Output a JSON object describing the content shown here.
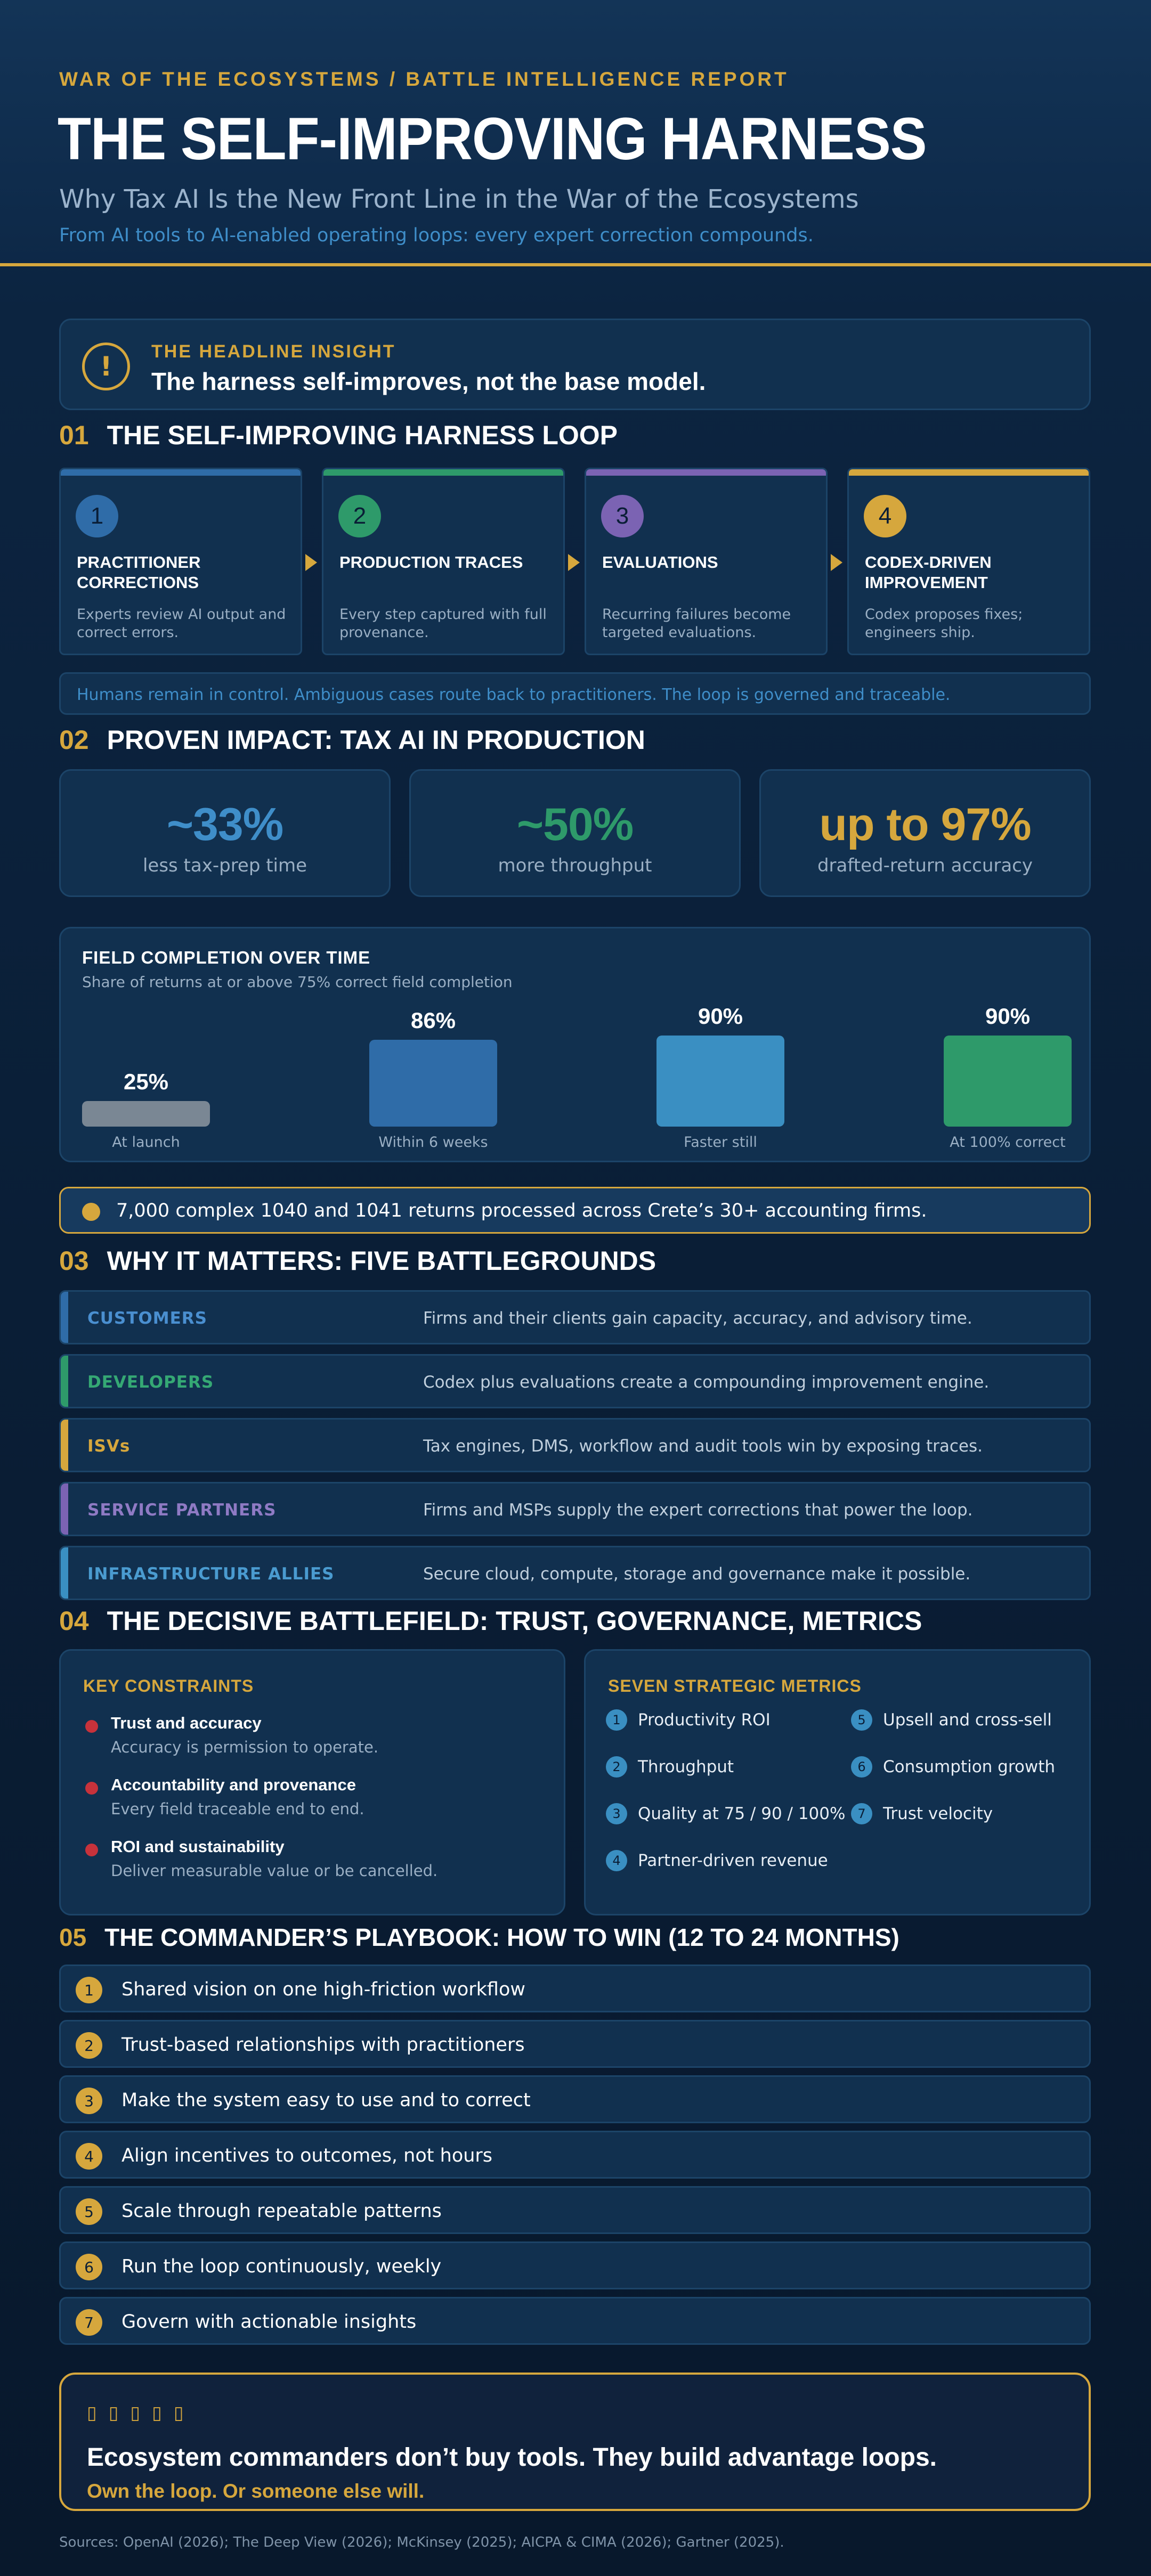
{
  "header": {
    "kicker": "WAR OF THE ECOSYSTEMS / BATTLE INTELLIGENCE REPORT",
    "title": "THE SELF-IMPROVING HARNESS",
    "subtitle": "Why Tax AI Is the New Front Line in the War of the Ecosystems",
    "tagline": "From AI tools to AI-enabled operating loops: every expert correction compounds."
  },
  "insight": {
    "icon": "!",
    "label": "THE HEADLINE INSIGHT",
    "text": "The harness self-improves, not the base model."
  },
  "section1": {
    "num": "01",
    "title": "THE SELF-IMPROVING HARNESS LOOP",
    "steps": [
      {
        "n": "1",
        "title": "PRACTITIONER CORRECTIONS",
        "desc": "Experts review AI output and correct errors.",
        "color": "#2f6ca8"
      },
      {
        "n": "2",
        "title": "PRODUCTION TRACES",
        "desc": "Every step captured with full provenance.",
        "color": "#2e9a6a"
      },
      {
        "n": "3",
        "title": "EVALUATIONS",
        "desc": "Recurring failures become targeted evaluations.",
        "color": "#7b63b3"
      },
      {
        "n": "4",
        "title": "CODEX-DRIVEN IMPROVEMENT",
        "desc": "Codex proposes fixes; engineers ship.",
        "color": "#d6a73d"
      }
    ],
    "note": "Humans remain in control. Ambiguous cases route back to practitioners. The loop is governed and traceable."
  },
  "section2": {
    "num": "02",
    "title": "PROVEN IMPACT: TAX AI IN PRODUCTION",
    "stats": [
      {
        "value": "~33%",
        "label": "less tax-prep time",
        "color": "#3f8ec9"
      },
      {
        "value": "~50%",
        "label": "more throughput",
        "color": "#2e9a6a"
      },
      {
        "value": "up to 97%",
        "label": "drafted-return accuracy",
        "color": "#d6a73d"
      }
    ]
  },
  "chart_data": {
    "type": "bar",
    "title": "FIELD COMPLETION OVER TIME",
    "subtitle": "Share of returns at or above 75% correct field completion",
    "categories": [
      "At launch",
      "Within 6 weeks",
      "Faster still",
      "At 100% correct"
    ],
    "values": [
      25,
      86,
      90,
      90
    ],
    "value_labels": [
      "25%",
      "86%",
      "90%",
      "90%"
    ],
    "colors": [
      "#7a8794",
      "#2f6ca8",
      "#3a8fc2",
      "#2e9a6a"
    ],
    "ylim": [
      0,
      100
    ],
    "grid": false
  },
  "banner": {
    "text": "7,000 complex 1040 and 1041 returns processed across Crete’s 30+ accounting firms."
  },
  "section3": {
    "num": "03",
    "title": "WHY IT MATTERS: FIVE BATTLEGROUNDS",
    "rows": [
      {
        "name": "CUSTOMERS",
        "desc": "Firms and their clients gain capacity, accuracy, and advisory time.",
        "color": "#2f6ca8",
        "text_color": "#4a8fd0"
      },
      {
        "name": "DEVELOPERS",
        "desc": "Codex plus evaluations create a compounding improvement engine.",
        "color": "#2e9a6a",
        "text_color": "#35a874"
      },
      {
        "name": "ISVs",
        "desc": "Tax engines, DMS, workflow and audit tools win by exposing traces.",
        "color": "#d6a73d",
        "text_color": "#d6a73d"
      },
      {
        "name": "SERVICE PARTNERS",
        "desc": "Firms and MSPs supply the expert corrections that power the loop.",
        "color": "#7b63b3",
        "text_color": "#8f7ac4"
      },
      {
        "name": "INFRASTRUCTURE ALLIES",
        "desc": "Secure cloud, compute, storage and governance make it possible.",
        "color": "#3a8fc2",
        "text_color": "#4a9bd0"
      }
    ]
  },
  "section4": {
    "num": "04",
    "title": "THE DECISIVE BATTLEFIELD: TRUST, GOVERNANCE, METRICS",
    "constraints_title": "KEY CONSTRAINTS",
    "constraints": [
      {
        "title": "Trust and accuracy",
        "desc": "Accuracy is permission to operate."
      },
      {
        "title": "Accountability and provenance",
        "desc": "Every field traceable end to end."
      },
      {
        "title": "ROI and sustainability",
        "desc": "Deliver measurable value or be cancelled."
      }
    ],
    "metrics_title": "SEVEN STRATEGIC METRICS",
    "metrics": [
      {
        "n": "1",
        "label": "Productivity ROI"
      },
      {
        "n": "2",
        "label": "Throughput"
      },
      {
        "n": "3",
        "label": "Quality at 75 / 90 / 100%"
      },
      {
        "n": "4",
        "label": "Partner-driven revenue"
      },
      {
        "n": "5",
        "label": "Upsell and cross-sell"
      },
      {
        "n": "6",
        "label": "Consumption growth"
      },
      {
        "n": "7",
        "label": "Trust velocity"
      }
    ]
  },
  "section5": {
    "num": "05",
    "title": "THE COMMANDER’S PLAYBOOK: HOW TO WIN (12 TO 24 MONTHS)",
    "items": [
      {
        "n": "1",
        "text": "Shared vision on one high-friction workflow"
      },
      {
        "n": "2",
        "text": "Trust-based relationships with practitioners"
      },
      {
        "n": "3",
        "text": "Make the system easy to use and to correct"
      },
      {
        "n": "4",
        "text": "Align incentives to outcomes, not hours"
      },
      {
        "n": "5",
        "text": "Scale through repeatable patterns"
      },
      {
        "n": "6",
        "text": "Run the loop continuously, weekly"
      },
      {
        "n": "7",
        "text": "Govern with actionable insights"
      }
    ]
  },
  "closing": {
    "stars": "▯▯▯▯▯",
    "quote": "Ecosystem commanders don’t buy tools. They build advantage loops.",
    "sub": "Own the loop. Or someone else will."
  },
  "sources": "Sources: OpenAI (2026); The Deep View (2026); McKinsey (2025); AICPA & CIMA (2026); Gartner (2025)."
}
